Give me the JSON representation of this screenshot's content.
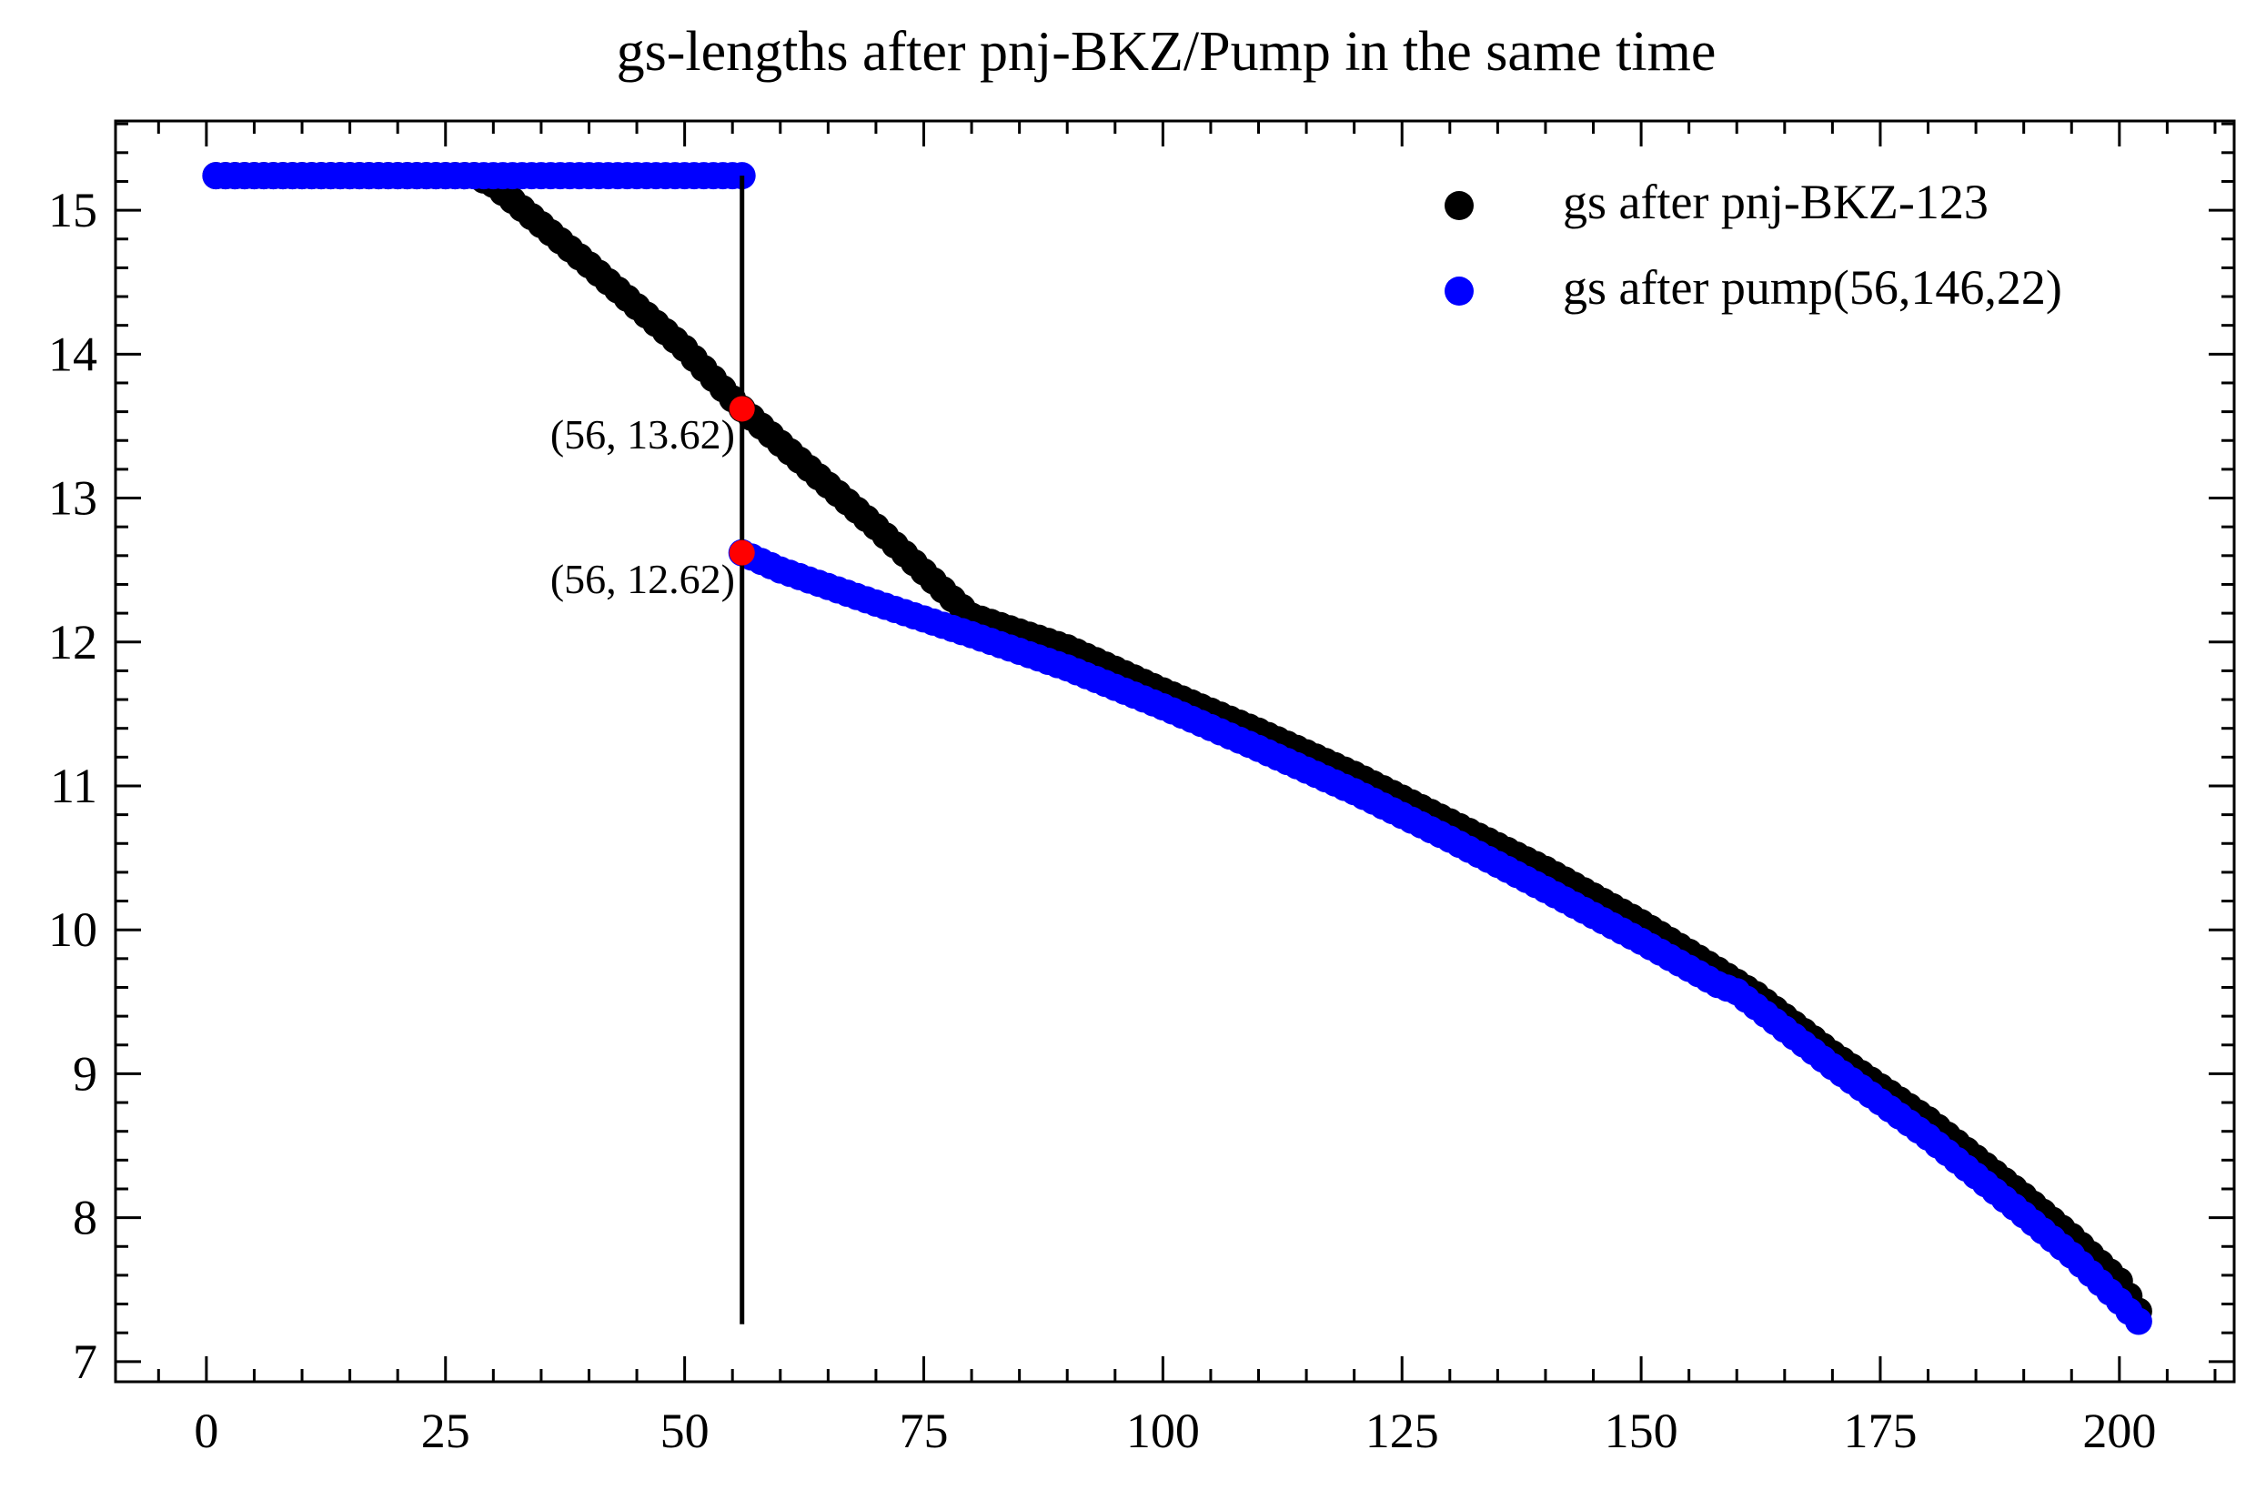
{
  "chart_data": {
    "type": "scatter",
    "title": "gs-lengths after pnj-BKZ/Pump in the same time",
    "xlabel": "",
    "ylabel": "",
    "xlim": [
      -9.5,
      212
    ],
    "ylim": [
      6.86,
      15.62
    ],
    "xticks": [
      0,
      25,
      50,
      75,
      100,
      125,
      150,
      175,
      200
    ],
    "yticks": [
      7,
      8,
      9,
      10,
      11,
      12,
      13,
      14,
      15
    ],
    "grid": false,
    "legend_position": "top-right",
    "series": [
      {
        "name": "gs after pnj-BKZ-123",
        "color": "#000000",
        "points": [
          [
            1,
            15.24
          ],
          [
            28,
            15.24
          ],
          [
            30,
            15.18
          ],
          [
            40,
            14.62
          ],
          [
            50,
            14.04
          ],
          [
            56,
            13.62
          ],
          [
            60,
            13.38
          ],
          [
            70,
            12.8
          ],
          [
            78,
            12.3
          ],
          [
            80,
            12.18
          ],
          [
            90,
            11.96
          ],
          [
            100,
            11.66
          ],
          [
            110,
            11.38
          ],
          [
            120,
            11.08
          ],
          [
            130,
            10.75
          ],
          [
            140,
            10.42
          ],
          [
            150,
            10.05
          ],
          [
            158,
            9.72
          ],
          [
            162,
            9.55
          ],
          [
            170,
            9.14
          ],
          [
            180,
            8.68
          ],
          [
            190,
            8.15
          ],
          [
            195,
            7.87
          ],
          [
            200,
            7.56
          ],
          [
            202,
            7.35
          ]
        ]
      },
      {
        "name": "gs after pump(56,146,22)",
        "color": "#0000ff",
        "points": [
          [
            1,
            15.24
          ],
          [
            56,
            15.24
          ],
          [
            56,
            12.62
          ],
          [
            60,
            12.5
          ],
          [
            70,
            12.27
          ],
          [
            80,
            12.05
          ],
          [
            90,
            11.82
          ],
          [
            100,
            11.55
          ],
          [
            110,
            11.26
          ],
          [
            120,
            10.96
          ],
          [
            130,
            10.63
          ],
          [
            140,
            10.28
          ],
          [
            150,
            9.92
          ],
          [
            158,
            9.62
          ],
          [
            160,
            9.57
          ],
          [
            170,
            9.05
          ],
          [
            180,
            8.56
          ],
          [
            190,
            8.02
          ],
          [
            195,
            7.74
          ],
          [
            200,
            7.42
          ],
          [
            202,
            7.28
          ]
        ]
      }
    ],
    "vertical_line": {
      "x": 56,
      "y_from": 7.26,
      "y_to": 15.24,
      "color": "#000000"
    },
    "highlight_points": [
      {
        "x": 56,
        "y": 13.62,
        "label": "(56, 13.62)",
        "color": "#ff0000"
      },
      {
        "x": 56,
        "y": 12.62,
        "label": "(56, 12.62)",
        "color": "#ff0000"
      }
    ]
  }
}
